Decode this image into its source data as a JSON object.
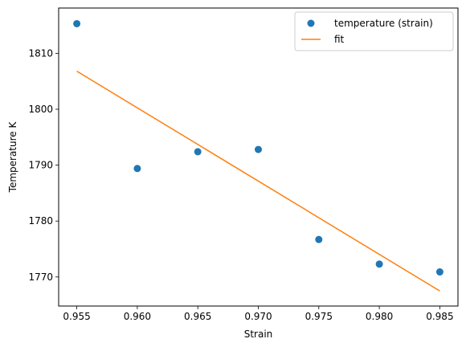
{
  "chart_data": {
    "type": "scatter",
    "title": "",
    "xlabel": "Strain",
    "ylabel": "Temperature K",
    "xlim": [
      0.9535,
      0.9865
    ],
    "ylim": [
      1764.8,
      1818.1
    ],
    "x_ticks": [
      0.955,
      0.96,
      0.965,
      0.97,
      0.975,
      0.98,
      0.985
    ],
    "x_tick_labels": [
      "0.955",
      "0.960",
      "0.965",
      "0.970",
      "0.975",
      "0.980",
      "0.985"
    ],
    "y_ticks": [
      1770,
      1780,
      1790,
      1800,
      1810
    ],
    "y_tick_labels": [
      "1770",
      "1780",
      "1790",
      "1800",
      "1810"
    ],
    "grid": false,
    "legend_position": "top-right",
    "series": [
      {
        "name": "temperature (strain)",
        "kind": "markers",
        "color": "#1f77b4",
        "x": [
          0.955,
          0.96,
          0.965,
          0.97,
          0.975,
          0.98,
          0.985
        ],
        "y": [
          1815.3,
          1789.4,
          1792.4,
          1792.8,
          1776.7,
          1772.3,
          1770.9
        ]
      },
      {
        "name": "fit",
        "kind": "line",
        "color": "#ff7f0e",
        "x": [
          0.955,
          0.985
        ],
        "y": [
          1806.8,
          1767.5
        ]
      }
    ]
  }
}
